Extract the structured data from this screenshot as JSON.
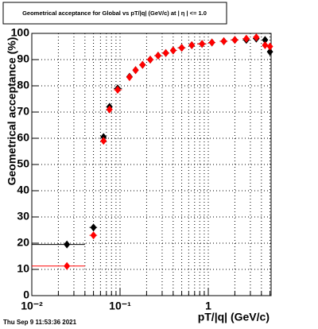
{
  "chart_data": {
    "type": "scatter",
    "title": "Geometrical acceptance for Global vs pT/|q| (GeV/c) at |  η  | <= 1.0",
    "footer": "Thu Sep  9 11:53:36 2021",
    "x_label": "pT/|q| (GeV/c)",
    "y_label": "Geometrical acceptance (%)",
    "log_x": true,
    "grid": true,
    "xlim": [
      0.01,
      5.15
    ],
    "ylim": [
      0,
      100
    ],
    "xticks": [
      {
        "value": 0.01,
        "label": "10⁻²"
      },
      {
        "value": 0.1,
        "label": "10⁻¹"
      },
      1
    ],
    "xticks_minor": [
      0.02,
      0.03,
      0.04,
      0.05,
      0.06,
      0.07,
      0.08,
      0.09,
      0.2,
      0.3,
      0.4,
      0.5,
      0.6,
      0.7,
      0.8,
      0.9,
      2,
      3,
      4,
      5
    ],
    "yticks": [
      0,
      10,
      20,
      30,
      40,
      50,
      60,
      70,
      80,
      90,
      100
    ],
    "x": [
      0.025,
      0.05,
      0.065,
      0.076,
      0.094,
      0.128,
      0.15,
      0.18,
      0.22,
      0.27,
      0.33,
      0.4,
      0.5,
      0.65,
      0.85,
      1.1,
      1.5,
      2.0,
      2.7,
      3.5,
      4.4,
      5.0
    ],
    "x_low": [
      0.01,
      0.045,
      0.06,
      0.07,
      0.085,
      0.118,
      0.14,
      0.165,
      0.2,
      0.245,
      0.3,
      0.37,
      0.45,
      0.6,
      0.75,
      1.0,
      1.35,
      1.8,
      2.45,
      3.2,
      4.1,
      4.8
    ],
    "x_high": [
      0.04,
      0.055,
      0.07,
      0.082,
      0.105,
      0.138,
      0.16,
      0.195,
      0.24,
      0.295,
      0.36,
      0.44,
      0.55,
      0.7,
      0.95,
      1.2,
      1.65,
      2.2,
      2.95,
      3.8,
      4.7,
      5.15
    ],
    "series": [
      {
        "color": "#000000",
        "values": [
          19.5,
          26,
          60.5,
          72,
          79,
          83.5,
          86,
          88,
          90,
          91.5,
          92.5,
          93.5,
          94.5,
          95.5,
          96,
          96.5,
          97,
          97.5,
          97.5,
          98,
          97.5,
          93
        ]
      },
      {
        "color": "#ff0000",
        "values": [
          11.3,
          23,
          59,
          71,
          78.5,
          83.3,
          86,
          88,
          90,
          91.5,
          92.5,
          93.5,
          94.5,
          95.5,
          96,
          96.5,
          97,
          97.5,
          98,
          98.5,
          95.5,
          95
        ]
      }
    ]
  }
}
